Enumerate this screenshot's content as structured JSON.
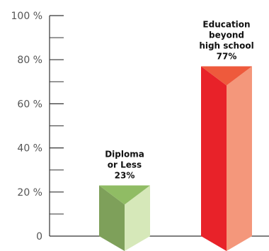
{
  "chart_data": {
    "type": "bar",
    "categories": [
      "Diploma or Less",
      "Education beyond high school"
    ],
    "values": [
      23,
      77
    ],
    "value_labels": [
      "23%",
      "77%"
    ],
    "label_lines": [
      [
        "Diploma",
        "or Less",
        "23%"
      ],
      [
        "Education",
        "beyond",
        "high school",
        "77%"
      ]
    ],
    "ylim": [
      0,
      100
    ],
    "yticks": [
      0,
      20,
      40,
      60,
      80,
      100
    ],
    "ytick_labels": [
      "0",
      "20 %",
      "40 %",
      "60 %",
      "80 %",
      "100 %"
    ],
    "grid": false,
    "legend": "none",
    "style": "3d-prism",
    "colors": [
      {
        "left": "#7ea05a",
        "right": "#d6e8b9",
        "top": "#90bc64"
      },
      {
        "left": "#e82229",
        "right": "#f4977b",
        "top": "#ee5a3c"
      }
    ]
  }
}
